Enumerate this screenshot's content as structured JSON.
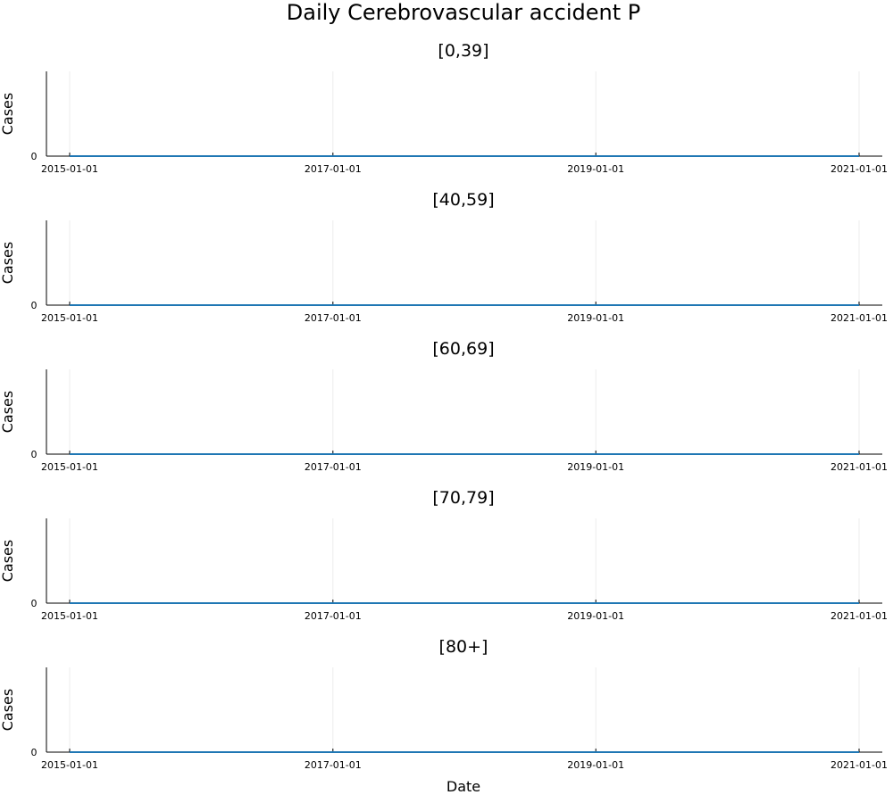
{
  "chart_data": {
    "type": "line",
    "title": "Daily Cerebrovascular accident P",
    "xlabel": "Date",
    "ylabel": "Cases",
    "x_ticks": [
      "2015-01-01",
      "2017-01-01",
      "2019-01-01",
      "2021-01-01"
    ],
    "x_range": [
      "2015-01-01",
      "2021-01-01"
    ],
    "y_ticks": [
      0
    ],
    "grid": true,
    "line_color": "#1f77b4",
    "panels": [
      {
        "title": "[0,39]",
        "series": [
          {
            "x": [
              "2015-01-01",
              "2021-01-01"
            ],
            "values": [
              0,
              0
            ]
          }
        ]
      },
      {
        "title": "[40,59]",
        "series": [
          {
            "x": [
              "2015-01-01",
              "2021-01-01"
            ],
            "values": [
              0,
              0
            ]
          }
        ]
      },
      {
        "title": "[60,69]",
        "series": [
          {
            "x": [
              "2015-01-01",
              "2021-01-01"
            ],
            "values": [
              0,
              0
            ]
          }
        ]
      },
      {
        "title": "[70,79]",
        "series": [
          {
            "x": [
              "2015-01-01",
              "2021-01-01"
            ],
            "values": [
              0,
              0
            ]
          }
        ]
      },
      {
        "title": "[80+]",
        "series": [
          {
            "x": [
              "2015-01-01",
              "2021-01-01"
            ],
            "values": [
              0,
              0
            ]
          }
        ]
      }
    ]
  }
}
